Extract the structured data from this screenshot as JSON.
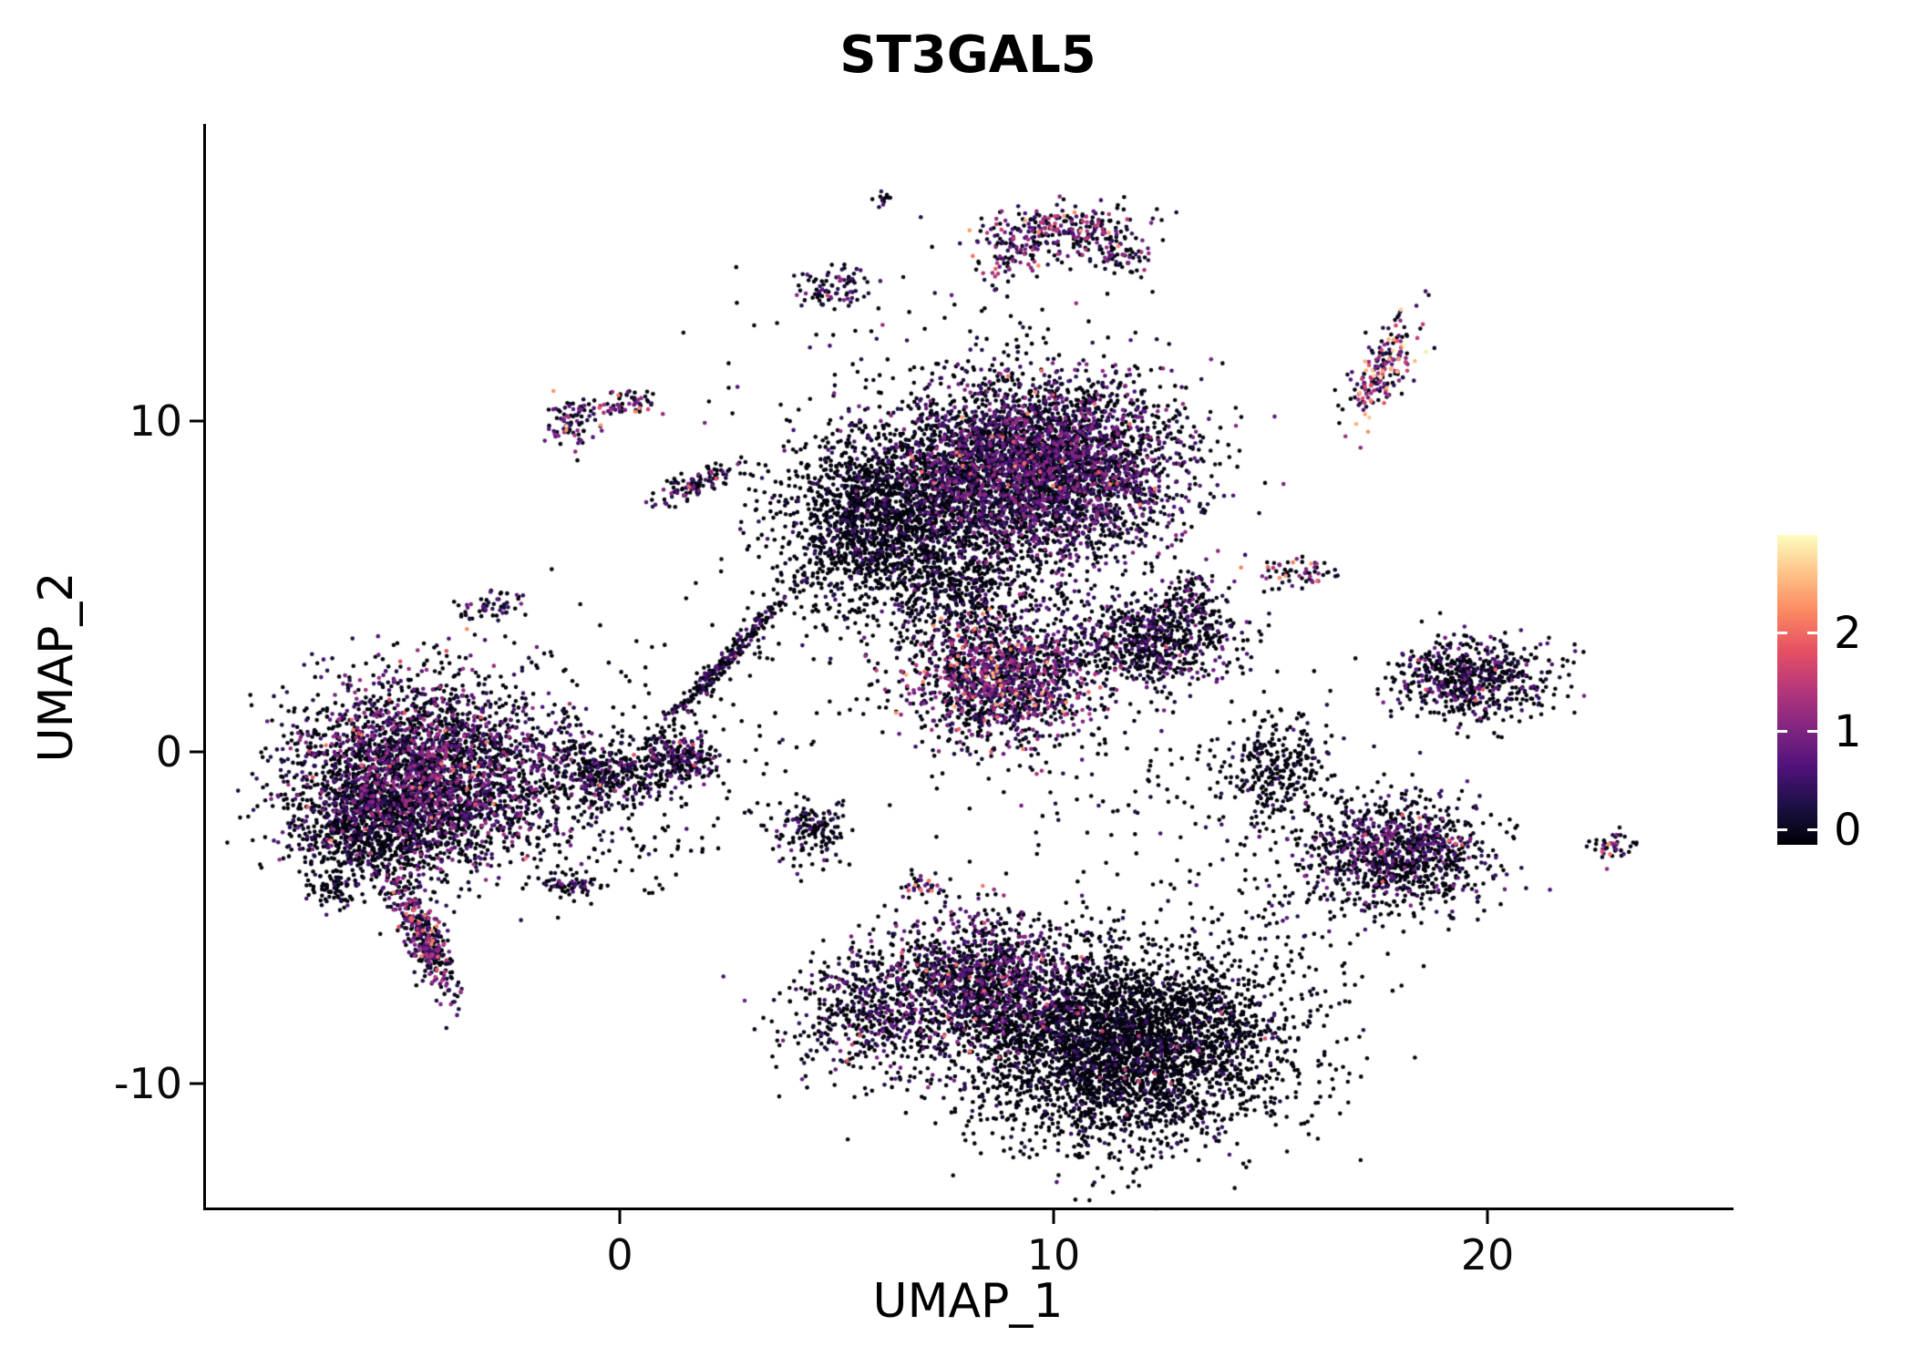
{
  "title": "ST3GAL5",
  "chart_data": {
    "type": "scatter",
    "title": "ST3GAL5",
    "xlabel": "UMAP_1",
    "ylabel": "UMAP_2",
    "xlim": [
      -9.5,
      25.6
    ],
    "ylim": [
      -13.8,
      18.9
    ],
    "x_ticks": [
      0,
      10,
      20
    ],
    "y_ticks": [
      -10,
      0,
      10
    ],
    "legend_ticks": [
      0,
      1,
      2
    ],
    "color_scale_meaning": "ST3GAL5 expression level per cell",
    "color_limits": [
      0,
      2.9
    ],
    "colormap": [
      "#000004",
      "#1c1044",
      "#4f127b",
      "#812581",
      "#b5367a",
      "#e55064",
      "#fb8761",
      "#fec287",
      "#fcfdbf"
    ],
    "points_encoding": "gaussian-clusters",
    "clusters": [
      {
        "name": "left-main",
        "cx": -4.4,
        "cy": -0.7,
        "sx": 1.55,
        "sy": 1.45,
        "angle": 0,
        "n": 3200,
        "p_zero": 0.45,
        "scale": 1.35,
        "hot": 0.012,
        "hot_max": 2.2
      },
      {
        "name": "left-dark-edge",
        "cx": -5.9,
        "cy": -2.3,
        "sx": 0.9,
        "sy": 0.8,
        "angle": 0,
        "n": 650,
        "p_zero": 0.78,
        "scale": 0.7,
        "hot": 0,
        "hot_max": 0
      },
      {
        "name": "left-tail",
        "cx": -4.5,
        "cy": -5.6,
        "sx": 0.95,
        "sy": 0.22,
        "angle": -71,
        "n": 380,
        "p_zero": 0.3,
        "scale": 1.5,
        "hot": 0.03,
        "hot_max": 2.3
      },
      {
        "name": "left-below-blob",
        "cx": -6.6,
        "cy": -4.2,
        "sx": 0.3,
        "sy": 0.25,
        "angle": 0,
        "n": 60,
        "p_zero": 0.7,
        "scale": 0.9,
        "hot": 0,
        "hot_max": 0
      },
      {
        "name": "left-upper-streak",
        "cx": -3.0,
        "cy": 4.4,
        "sx": 0.4,
        "sy": 0.22,
        "angle": 20,
        "n": 55,
        "p_zero": 0.5,
        "scale": 1.1,
        "hot": 0,
        "hot_max": 0
      },
      {
        "name": "topleft-blob-a",
        "cx": -1.15,
        "cy": 9.9,
        "sx": 0.28,
        "sy": 0.33,
        "angle": 0,
        "n": 75,
        "p_zero": 0.3,
        "scale": 1.5,
        "hot": 0.08,
        "hot_max": 2.9
      },
      {
        "name": "topleft-blob-b",
        "cx": 0.05,
        "cy": 10.5,
        "sx": 0.45,
        "sy": 0.22,
        "angle": 10,
        "n": 65,
        "p_zero": 0.35,
        "scale": 1.4,
        "hot": 0.03,
        "hot_max": 2.2
      },
      {
        "name": "upper-streak",
        "cx": 1.8,
        "cy": 8.1,
        "sx": 0.6,
        "sy": 0.2,
        "angle": 34,
        "n": 110,
        "p_zero": 0.45,
        "scale": 1.3,
        "hot": 0.02,
        "hot_max": 2.0
      },
      {
        "name": "diag-streak",
        "cx": 2.45,
        "cy": 2.75,
        "sx": 1.4,
        "sy": 0.13,
        "angle": 55,
        "n": 270,
        "p_zero": 0.6,
        "scale": 1.0,
        "hot": 0.01,
        "hot_max": 1.8
      },
      {
        "name": "small-cluster-1-0",
        "cx": 1.4,
        "cy": -0.2,
        "sx": 0.42,
        "sy": 0.38,
        "angle": 0,
        "n": 210,
        "p_zero": 0.55,
        "scale": 1.1,
        "hot": 0.01,
        "hot_max": 1.8
      },
      {
        "name": "connector",
        "cx": -0.3,
        "cy": -0.6,
        "sx": 0.75,
        "sy": 0.5,
        "angle": 0,
        "n": 380,
        "p_zero": 0.62,
        "scale": 1.0,
        "hot": 0.005,
        "hot_max": 1.6
      },
      {
        "name": "tiny-neg1-neg4",
        "cx": -1.2,
        "cy": -4.0,
        "sx": 0.4,
        "sy": 0.2,
        "angle": 0,
        "n": 60,
        "p_zero": 0.6,
        "scale": 1.0,
        "hot": 0,
        "hot_max": 0
      },
      {
        "name": "blob-4-neg2",
        "cx": 4.4,
        "cy": -2.4,
        "sx": 0.5,
        "sy": 0.42,
        "angle": 0,
        "n": 150,
        "p_zero": 0.68,
        "scale": 0.9,
        "hot": 0,
        "hot_max": 0
      },
      {
        "name": "tiny-7-neg4",
        "cx": 7.0,
        "cy": -4.0,
        "sx": 0.25,
        "sy": 0.2,
        "angle": 0,
        "n": 30,
        "p_zero": 0.4,
        "scale": 1.3,
        "hot": 0.12,
        "hot_max": 2.3
      },
      {
        "name": "top-small-cluster",
        "cx": 5.0,
        "cy": 14.0,
        "sx": 0.45,
        "sy": 0.3,
        "angle": 0,
        "n": 85,
        "p_zero": 0.45,
        "scale": 1.2,
        "hot": 0.02,
        "hot_max": 2.0
      },
      {
        "name": "tiny-top",
        "cx": 6.1,
        "cy": 16.7,
        "sx": 0.16,
        "sy": 0.14,
        "angle": 0,
        "n": 12,
        "p_zero": 0.5,
        "scale": 1.0,
        "hot": 0,
        "hot_max": 0
      },
      {
        "name": "top-cluster-main",
        "cx": 10.1,
        "cy": 15.7,
        "sx": 0.95,
        "sy": 0.42,
        "angle": 8,
        "n": 270,
        "p_zero": 0.3,
        "scale": 1.6,
        "hot": 0.05,
        "hot_max": 2.6
      },
      {
        "name": "top-cluster-arm-left",
        "cx": 8.9,
        "cy": 14.9,
        "sx": 0.3,
        "sy": 0.4,
        "angle": -30,
        "n": 45,
        "p_zero": 0.35,
        "scale": 1.5,
        "hot": 0.04,
        "hot_max": 2.4
      },
      {
        "name": "top-cluster-arm-right",
        "cx": 11.6,
        "cy": 15.0,
        "sx": 0.45,
        "sy": 0.28,
        "angle": -40,
        "n": 70,
        "p_zero": 0.4,
        "scale": 1.4,
        "hot": 0.03,
        "hot_max": 2.3
      },
      {
        "name": "central-purple",
        "cx": 9.6,
        "cy": 8.6,
        "sx": 1.65,
        "sy": 1.35,
        "angle": 0,
        "n": 4200,
        "p_zero": 0.42,
        "scale": 1.25,
        "hot": 0.008,
        "hot_max": 2.3
      },
      {
        "name": "central-dark",
        "cx": 6.1,
        "cy": 7.1,
        "sx": 1.25,
        "sy": 1.3,
        "angle": 0,
        "n": 1800,
        "p_zero": 0.8,
        "scale": 0.7,
        "hot": 0,
        "hot_max": 0
      },
      {
        "name": "central-lower-sparse",
        "cx": 7.6,
        "cy": 5.0,
        "sx": 1.2,
        "sy": 0.85,
        "angle": 0,
        "n": 550,
        "p_zero": 0.75,
        "scale": 0.8,
        "hot": 0,
        "hot_max": 0
      },
      {
        "name": "mid-purple",
        "cx": 8.8,
        "cy": 2.2,
        "sx": 1.05,
        "sy": 1.0,
        "angle": 0,
        "n": 1400,
        "p_zero": 0.35,
        "scale": 1.5,
        "hot": 0.035,
        "hot_max": 2.5
      },
      {
        "name": "mid-right",
        "cx": 12.2,
        "cy": 3.4,
        "sx": 1.0,
        "sy": 0.68,
        "angle": 0,
        "n": 700,
        "p_zero": 0.6,
        "scale": 1.0,
        "hot": 0.008,
        "hot_max": 2.0
      },
      {
        "name": "mid-right-arm",
        "cx": 13.3,
        "cy": 4.7,
        "sx": 0.3,
        "sy": 0.5,
        "angle": 0,
        "n": 90,
        "p_zero": 0.55,
        "scale": 1.1,
        "hot": 0.01,
        "hot_max": 2.0
      },
      {
        "name": "bottom-dark",
        "cx": 11.6,
        "cy": -8.9,
        "sx": 1.85,
        "sy": 1.45,
        "angle": 0,
        "n": 3800,
        "p_zero": 0.82,
        "scale": 0.7,
        "hot": 0.003,
        "hot_max": 1.8
      },
      {
        "name": "bottom-left-purple",
        "cx": 8.3,
        "cy": -6.9,
        "sx": 1.15,
        "sy": 1.05,
        "angle": 0,
        "n": 1300,
        "p_zero": 0.45,
        "scale": 1.25,
        "hot": 0.012,
        "hot_max": 2.2
      },
      {
        "name": "bottom-left-lobe",
        "cx": 5.7,
        "cy": -7.9,
        "sx": 0.95,
        "sy": 1.0,
        "angle": 0,
        "n": 520,
        "p_zero": 0.55,
        "scale": 1.1,
        "hot": 0.008,
        "hot_max": 2.0
      },
      {
        "name": "right-sparse",
        "cx": 15.2,
        "cy": -0.6,
        "sx": 0.7,
        "sy": 0.9,
        "angle": 0,
        "n": 300,
        "p_zero": 0.8,
        "scale": 0.7,
        "hot": 0,
        "hot_max": 0
      },
      {
        "name": "right-cluster",
        "cx": 17.9,
        "cy": -3.1,
        "sx": 1.1,
        "sy": 0.85,
        "angle": 0,
        "n": 1000,
        "p_zero": 0.55,
        "scale": 1.15,
        "hot": 0.01,
        "hot_max": 2.1
      },
      {
        "name": "far-right-cluster",
        "cx": 19.6,
        "cy": 2.2,
        "sx": 0.95,
        "sy": 0.6,
        "angle": 0,
        "n": 620,
        "p_zero": 0.58,
        "scale": 1.05,
        "hot": 0.008,
        "hot_max": 2.1
      },
      {
        "name": "topright-streak",
        "cx": 17.6,
        "cy": 11.5,
        "sx": 0.85,
        "sy": 0.27,
        "angle": 66,
        "n": 190,
        "p_zero": 0.12,
        "scale": 1.9,
        "hot": 0.15,
        "hot_max": 2.9
      },
      {
        "name": "pair-15-5",
        "cx": 15.6,
        "cy": 5.4,
        "sx": 0.5,
        "sy": 0.24,
        "angle": 0,
        "n": 60,
        "p_zero": 0.35,
        "scale": 1.5,
        "hot": 0.08,
        "hot_max": 2.4
      },
      {
        "name": "far-right-tiny",
        "cx": 22.9,
        "cy": -2.8,
        "sx": 0.3,
        "sy": 0.24,
        "angle": 0,
        "n": 42,
        "p_zero": 0.45,
        "scale": 1.3,
        "hot": 0.1,
        "hot_max": 2.3
      },
      {
        "name": "noise-left-center",
        "cx": 2.5,
        "cy": 1.5,
        "sx": 2.4,
        "sy": 1.9,
        "angle": 0,
        "n": 120,
        "p_zero": 0.85,
        "scale": 0.7,
        "hot": 0,
        "hot_max": 0
      },
      {
        "name": "noise-mid-right",
        "cx": 12.5,
        "cy": -1.2,
        "sx": 2.2,
        "sy": 1.7,
        "angle": 0,
        "n": 120,
        "p_zero": 0.82,
        "scale": 0.7,
        "hot": 0,
        "hot_max": 0
      },
      {
        "name": "noise-top",
        "cx": 7.0,
        "cy": 12.4,
        "sx": 2.4,
        "sy": 1.2,
        "angle": 0,
        "n": 70,
        "p_zero": 0.75,
        "scale": 0.9,
        "hot": 0,
        "hot_max": 0
      },
      {
        "name": "noise-bottom-right",
        "cx": 15.4,
        "cy": -5.4,
        "sx": 1.5,
        "sy": 1.1,
        "angle": 0,
        "n": 90,
        "p_zero": 0.8,
        "scale": 0.8,
        "hot": 0,
        "hot_max": 0
      },
      {
        "name": "noise-left-low",
        "cx": 0.0,
        "cy": -2.6,
        "sx": 1.3,
        "sy": 0.9,
        "angle": 0,
        "n": 80,
        "p_zero": 0.8,
        "scale": 0.8,
        "hot": 0,
        "hot_max": 0
      }
    ]
  }
}
